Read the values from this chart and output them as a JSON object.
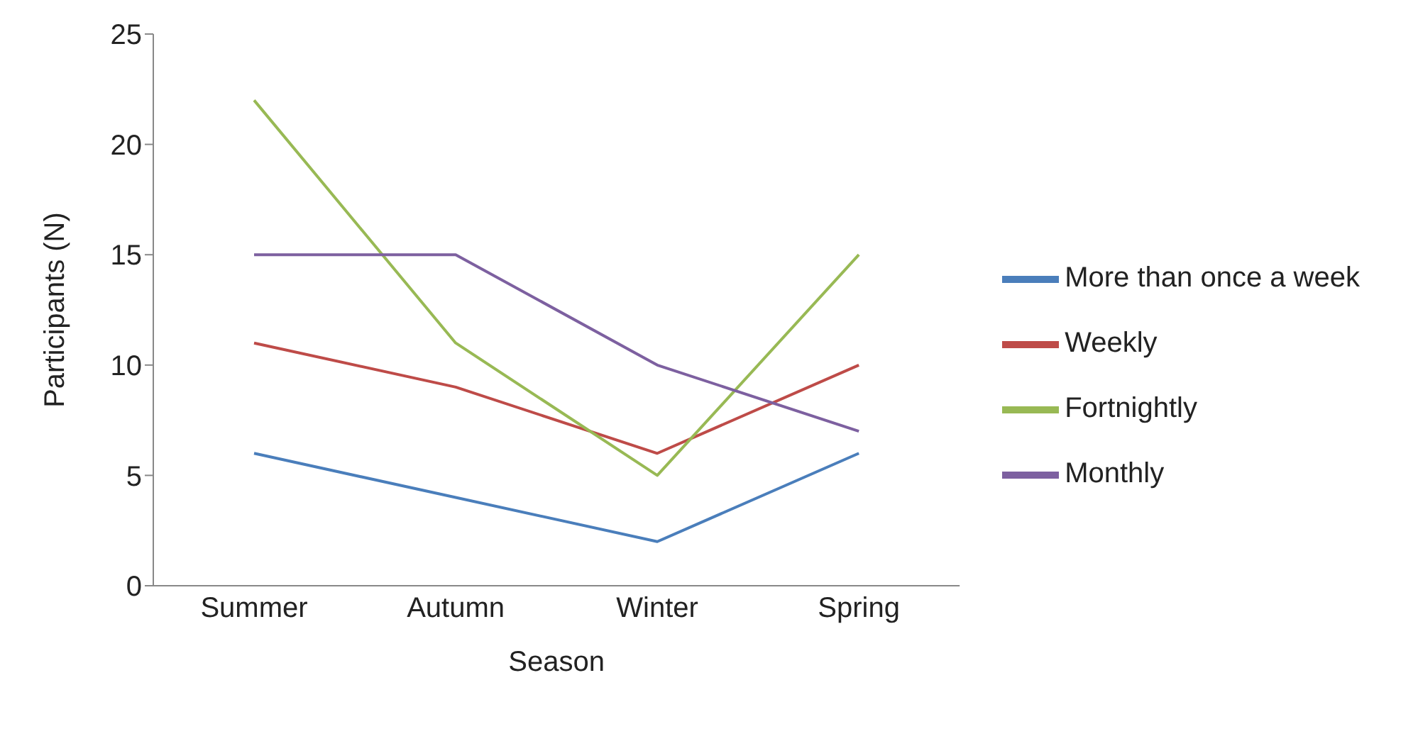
{
  "chart_data": {
    "type": "line",
    "xlabel": "Season",
    "ylabel": "Participants (N)",
    "categories": [
      "Summer",
      "Autumn",
      "Winter",
      "Spring"
    ],
    "series": [
      {
        "name": "More than once a week",
        "color": "#4a7ebb",
        "values": [
          6,
          4,
          2,
          6
        ]
      },
      {
        "name": "Weekly",
        "color": "#be4b48",
        "values": [
          11,
          9,
          6,
          10
        ]
      },
      {
        "name": "Fortnightly",
        "color": "#98b954",
        "values": [
          22,
          11,
          5,
          15
        ]
      },
      {
        "name": "Monthly",
        "color": "#7d60a0",
        "values": [
          15,
          15,
          10,
          7
        ]
      }
    ],
    "ylim": [
      0,
      25
    ],
    "yticks": [
      0,
      5,
      10,
      15,
      20,
      25
    ],
    "grid": false,
    "legend": "right",
    "marker": "none",
    "line_style": "solid"
  }
}
